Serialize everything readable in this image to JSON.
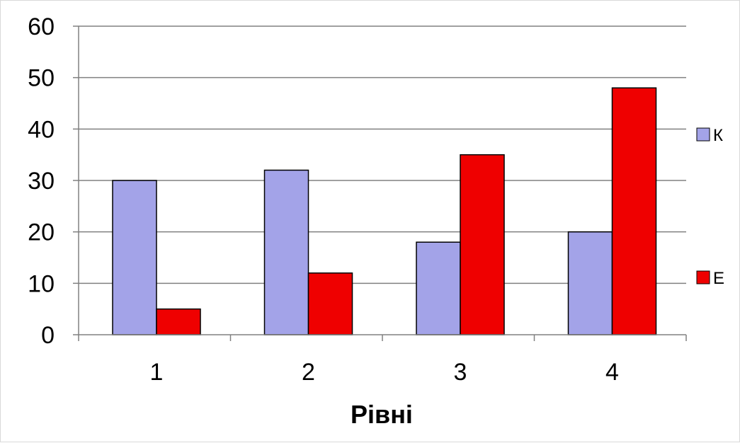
{
  "chart_data": {
    "type": "bar",
    "title": "",
    "xlabel": "Рівні",
    "ylabel": "",
    "categories": [
      "1",
      "2",
      "3",
      "4"
    ],
    "ylim": [
      0,
      60
    ],
    "yticks": [
      0,
      10,
      20,
      30,
      40,
      50,
      60
    ],
    "grid": true,
    "legend_position": "right",
    "series": [
      {
        "name": "К",
        "values": [
          30,
          32,
          18,
          20
        ],
        "color": "#a3a3e8"
      },
      {
        "name": "Е",
        "values": [
          5,
          12,
          35,
          48
        ],
        "color": "#ef0000"
      }
    ]
  }
}
